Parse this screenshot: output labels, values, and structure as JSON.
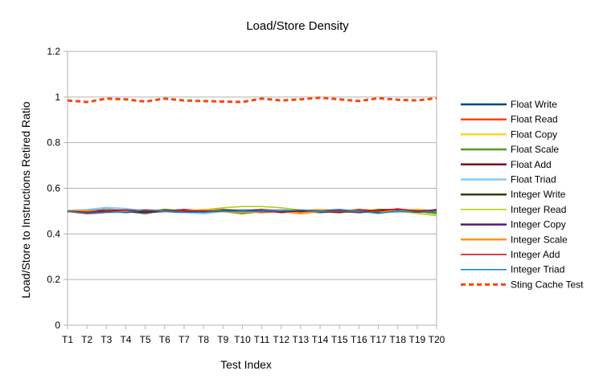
{
  "chart_data": {
    "type": "line",
    "title": "Load/Store Density",
    "xlabel": "Test Index",
    "ylabel": "Load/Store to Instructions Retired Ratio",
    "categories": [
      "T1",
      "T2",
      "T3",
      "T4",
      "T5",
      "T6",
      "T7",
      "T8",
      "T9",
      "T10",
      "T11",
      "T12",
      "T13",
      "T14",
      "T15",
      "T16",
      "T17",
      "T18",
      "T19",
      "T20"
    ],
    "ylim": [
      0,
      1.2
    ],
    "yticks": [
      0,
      0.2,
      0.4,
      0.6,
      0.8,
      1,
      1.2
    ],
    "ytick_labels": [
      "0",
      "0.2",
      "0.4",
      "0.6",
      "0.8",
      "1",
      "1.2"
    ],
    "grid": "horizontal",
    "legend": "right",
    "series": [
      {
        "name": "Float Write",
        "color": "#004586",
        "style": "solid",
        "width": 2.5,
        "values": [
          0.5,
          0.495,
          0.5,
          0.495,
          0.5,
          0.5,
          0.495,
          0.495,
          0.5,
          0.5,
          0.5,
          0.5,
          0.5,
          0.495,
          0.5,
          0.5,
          0.495,
          0.5,
          0.5,
          0.5
        ]
      },
      {
        "name": "Float Read",
        "color": "#ff420e",
        "style": "solid",
        "width": 2.5,
        "values": [
          0.5,
          0.49,
          0.495,
          0.505,
          0.5,
          0.5,
          0.505,
          0.5,
          0.505,
          0.5,
          0.495,
          0.5,
          0.5,
          0.505,
          0.5,
          0.505,
          0.5,
          0.505,
          0.5,
          0.5
        ]
      },
      {
        "name": "Float Copy",
        "color": "#ffd320",
        "style": "solid",
        "width": 2.5,
        "values": [
          0.5,
          0.505,
          0.5,
          0.5,
          0.5,
          0.505,
          0.5,
          0.5,
          0.5,
          0.505,
          0.5,
          0.5,
          0.495,
          0.505,
          0.5,
          0.5,
          0.505,
          0.5,
          0.505,
          0.5
        ]
      },
      {
        "name": "Float Scale",
        "color": "#579d1c",
        "style": "solid",
        "width": 2.5,
        "values": [
          0.5,
          0.495,
          0.5,
          0.5,
          0.49,
          0.505,
          0.495,
          0.5,
          0.5,
          0.49,
          0.5,
          0.5,
          0.5,
          0.5,
          0.495,
          0.5,
          0.5,
          0.5,
          0.5,
          0.49
        ]
      },
      {
        "name": "Float Add",
        "color": "#7e0021",
        "style": "solid",
        "width": 2.5,
        "values": [
          0.5,
          0.5,
          0.505,
          0.5,
          0.495,
          0.5,
          0.505,
          0.5,
          0.5,
          0.5,
          0.505,
          0.495,
          0.5,
          0.5,
          0.495,
          0.505,
          0.5,
          0.5,
          0.495,
          0.505
        ]
      },
      {
        "name": "Float Triad",
        "color": "#83caff",
        "style": "solid",
        "width": 2.5,
        "values": [
          0.5,
          0.505,
          0.515,
          0.51,
          0.5,
          0.505,
          0.495,
          0.49,
          0.5,
          0.505,
          0.5,
          0.505,
          0.5,
          0.5,
          0.505,
          0.5,
          0.5,
          0.495,
          0.5,
          0.5
        ]
      },
      {
        "name": "Integer Write",
        "color": "#314004",
        "style": "solid",
        "width": 2.5,
        "values": [
          0.5,
          0.495,
          0.495,
          0.5,
          0.495,
          0.505,
          0.5,
          0.5,
          0.505,
          0.5,
          0.5,
          0.5,
          0.5,
          0.5,
          0.5,
          0.495,
          0.505,
          0.505,
          0.5,
          0.5
        ]
      },
      {
        "name": "Integer Read",
        "color": "#aecf00",
        "style": "solid",
        "width": 1.5,
        "values": [
          0.5,
          0.5,
          0.505,
          0.5,
          0.5,
          0.5,
          0.5,
          0.505,
          0.515,
          0.52,
          0.52,
          0.515,
          0.505,
          0.5,
          0.5,
          0.5,
          0.5,
          0.5,
          0.49,
          0.48
        ]
      },
      {
        "name": "Integer Copy",
        "color": "#4b1f6f",
        "style": "solid",
        "width": 2.5,
        "values": [
          0.5,
          0.5,
          0.5,
          0.5,
          0.495,
          0.5,
          0.5,
          0.5,
          0.5,
          0.5,
          0.505,
          0.5,
          0.5,
          0.5,
          0.505,
          0.495,
          0.5,
          0.505,
          0.5,
          0.5
        ]
      },
      {
        "name": "Integer Scale",
        "color": "#ff950e",
        "style": "solid",
        "width": 2.5,
        "values": [
          0.5,
          0.5,
          0.495,
          0.5,
          0.505,
          0.5,
          0.5,
          0.505,
          0.5,
          0.495,
          0.5,
          0.5,
          0.49,
          0.5,
          0.5,
          0.5,
          0.5,
          0.5,
          0.505,
          0.5
        ]
      },
      {
        "name": "Integer Add",
        "color": "#c5000b",
        "style": "solid",
        "width": 1.5,
        "values": [
          0.5,
          0.495,
          0.5,
          0.505,
          0.5,
          0.5,
          0.5,
          0.5,
          0.5,
          0.5,
          0.5,
          0.495,
          0.5,
          0.5,
          0.5,
          0.5,
          0.5,
          0.51,
          0.5,
          0.505
        ]
      },
      {
        "name": "Integer Triad",
        "color": "#0084d1",
        "style": "solid",
        "width": 1.5,
        "values": [
          0.5,
          0.49,
          0.495,
          0.495,
          0.505,
          0.5,
          0.495,
          0.495,
          0.5,
          0.5,
          0.5,
          0.5,
          0.505,
          0.5,
          0.505,
          0.5,
          0.49,
          0.5,
          0.495,
          0.5
        ]
      },
      {
        "name": "Sting Cache Test",
        "color": "#ff420e",
        "style": "dashed",
        "width": 3,
        "values": [
          0.985,
          0.978,
          0.993,
          0.99,
          0.98,
          0.993,
          0.985,
          0.982,
          0.98,
          0.978,
          0.993,
          0.985,
          0.99,
          0.997,
          0.99,
          0.982,
          0.995,
          0.988,
          0.985,
          0.995
        ]
      }
    ]
  }
}
